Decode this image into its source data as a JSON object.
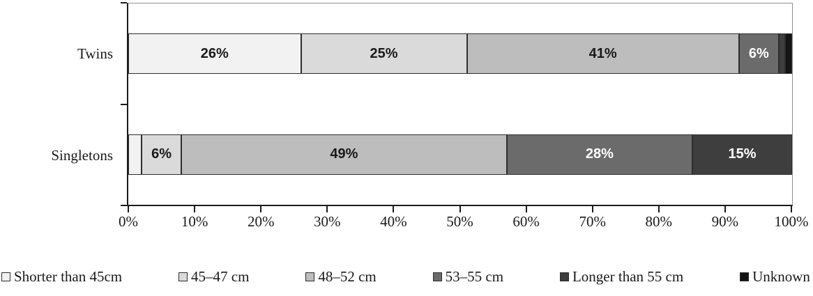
{
  "chart_data": {
    "type": "bar",
    "orientation": "horizontal-stacked",
    "title": "",
    "xlabel": "",
    "ylabel": "",
    "xlim": [
      0,
      100
    ],
    "grid": false,
    "legend_position": "bottom",
    "categories": [
      "Twins",
      "Singletons"
    ],
    "series": [
      {
        "name": "Shorter than 45cm",
        "color": "#f2f2f2",
        "label_color": "#1a1a1a",
        "values": [
          26,
          2
        ]
      },
      {
        "name": "45–47 cm",
        "color": "#dadada",
        "label_color": "#1a1a1a",
        "values": [
          25,
          6
        ]
      },
      {
        "name": "48–52 cm",
        "color": "#bdbdbd",
        "label_color": "#1a1a1a",
        "values": [
          41,
          49
        ]
      },
      {
        "name": "53–55 cm",
        "color": "#6b6b6b",
        "label_color": "#ffffff",
        "values": [
          6,
          28
        ]
      },
      {
        "name": "Longer than 55 cm",
        "color": "#3e3e3e",
        "label_color": "#ffffff",
        "values": [
          1,
          15
        ]
      },
      {
        "name": "Unknown",
        "color": "#141414",
        "label_color": "#ffffff",
        "values": [
          1,
          0
        ]
      }
    ],
    "x_ticks": [
      "0%",
      "10%",
      "20%",
      "30%",
      "40%",
      "50%",
      "60%",
      "70%",
      "80%",
      "90%",
      "100%"
    ],
    "bar_label_suffix": "%",
    "min_label_value": 5
  }
}
